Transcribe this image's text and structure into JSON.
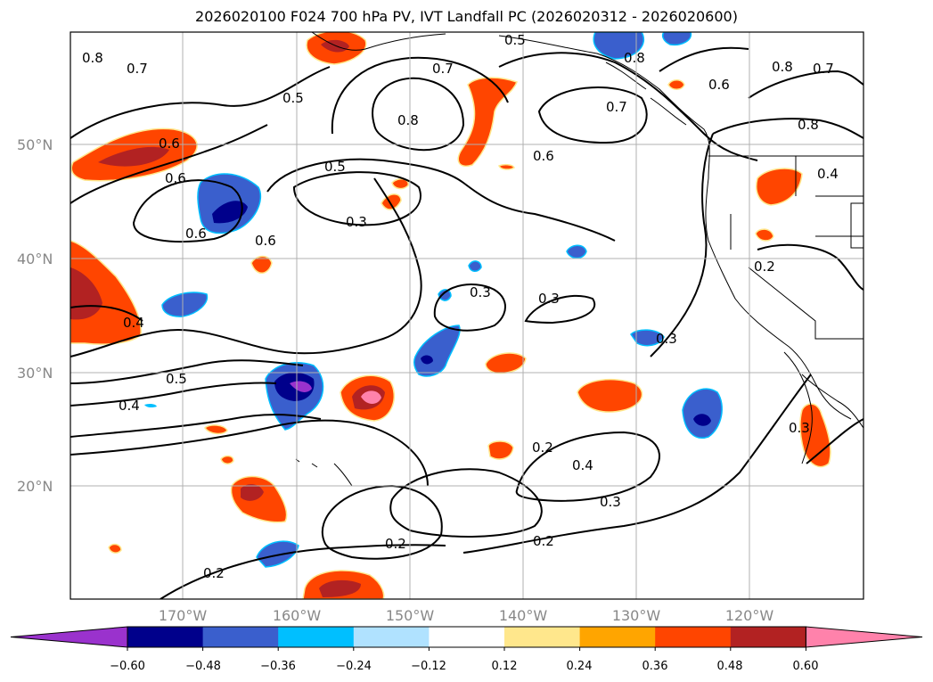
{
  "title": "2026020100 F024 700 hPa PV, IVT Landfall PC (2026020312 - 2026020600)",
  "map": {
    "lat_labels": [
      "50°N",
      "40°N",
      "30°N",
      "20°N"
    ],
    "lon_labels": [
      "170°W",
      "160°W",
      "150°W",
      "140°W",
      "130°W",
      "120°W"
    ],
    "grid": true
  },
  "contour_labels": [
    "0.8",
    "0.7",
    "0.5",
    "0.5",
    "0.7",
    "0.8",
    "0.7",
    "0.6",
    "0.6",
    "0.6",
    "0.6",
    "0.5",
    "0.3",
    "0.6",
    "0.3",
    "0.3",
    "0.4",
    "0.5",
    "0.4",
    "0.3",
    "0.2",
    "0.4",
    "0.3",
    "0.2",
    "0.2",
    "0.2",
    "0.2",
    "0.8",
    "0.8",
    "0.7",
    "0.6",
    "0.8",
    "0.4",
    "0.3"
  ],
  "colorbar": {
    "labels": [
      "−0.60",
      "−0.48",
      "−0.36",
      "−0.24",
      "−0.12",
      "0.12",
      "0.24",
      "0.36",
      "0.48",
      "0.60"
    ],
    "colors": [
      "#9a32cd",
      "#00008b",
      "#3a5fcd",
      "#00bfff",
      "#b0e2ff",
      "#ffffff",
      "#ffe78c",
      "#ffa500",
      "#ff4500",
      "#b22222",
      "#ff82ab"
    ]
  }
}
